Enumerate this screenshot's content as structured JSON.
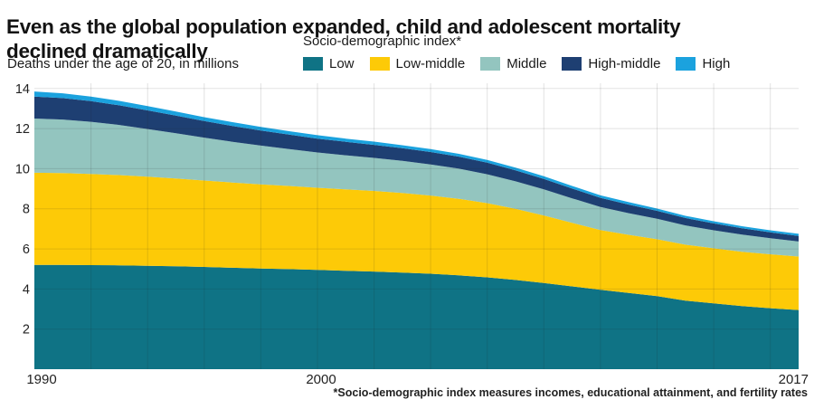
{
  "header": {
    "title_line1": "Even as the global population expanded, child and adolescent mortality",
    "title_line2": "declined dramatically",
    "subtitle": "Deaths under the age of 20, in millions"
  },
  "legend": {
    "title": "Socio-demographic index*"
  },
  "footnote": "*Socio-demographic index measures incomes, educational attainment, and fertility rates",
  "chart_data": {
    "type": "area",
    "stacked": true,
    "title": "Even as the global population expanded, child and adolescent mortality declined dramatically",
    "ylabel": "Deaths under the age of 20, in millions",
    "xlabel": "",
    "ylim": [
      0,
      14
    ],
    "y_ticks": [
      2,
      4,
      6,
      8,
      10,
      12,
      14
    ],
    "x_tick_labels": [
      "1990",
      "2000",
      "2017"
    ],
    "x_tick_years": [
      1990,
      2000,
      2017
    ],
    "grid": true,
    "legend_position": "top",
    "x": [
      1990,
      1991,
      1992,
      1993,
      1994,
      1995,
      1996,
      1997,
      1998,
      1999,
      2000,
      2001,
      2002,
      2003,
      2004,
      2005,
      2006,
      2007,
      2008,
      2009,
      2010,
      2011,
      2012,
      2013,
      2014,
      2015,
      2016,
      2017
    ],
    "series": [
      {
        "name": "Low",
        "color": "#0F7385",
        "values": [
          5.2,
          5.2,
          5.19,
          5.18,
          5.16,
          5.13,
          5.1,
          5.06,
          5.02,
          4.99,
          4.95,
          4.91,
          4.87,
          4.82,
          4.76,
          4.68,
          4.58,
          4.45,
          4.3,
          4.13,
          3.96,
          3.8,
          3.64,
          3.42,
          3.28,
          3.15,
          3.04,
          2.95
        ]
      },
      {
        "name": "Low-middle",
        "color": "#FDCA07",
        "values": [
          4.6,
          4.58,
          4.55,
          4.5,
          4.44,
          4.38,
          4.31,
          4.25,
          4.2,
          4.15,
          4.1,
          4.06,
          4.02,
          3.97,
          3.9,
          3.82,
          3.7,
          3.55,
          3.37,
          3.17,
          2.98,
          2.9,
          2.84,
          2.79,
          2.75,
          2.71,
          2.69,
          2.67
        ]
      },
      {
        "name": "Middle",
        "color": "#93C5BF",
        "values": [
          2.7,
          2.67,
          2.6,
          2.5,
          2.38,
          2.26,
          2.14,
          2.03,
          1.93,
          1.84,
          1.76,
          1.7,
          1.65,
          1.6,
          1.55,
          1.5,
          1.44,
          1.37,
          1.3,
          1.22,
          1.15,
          1.08,
          1.02,
          0.96,
          0.9,
          0.85,
          0.8,
          0.75
        ]
      },
      {
        "name": "High-middle",
        "color": "#1E3F72",
        "values": [
          1.1,
          1.07,
          1.03,
          0.98,
          0.93,
          0.88,
          0.83,
          0.79,
          0.75,
          0.72,
          0.69,
          0.67,
          0.65,
          0.63,
          0.62,
          0.6,
          0.58,
          0.55,
          0.52,
          0.49,
          0.46,
          0.43,
          0.4,
          0.37,
          0.34,
          0.32,
          0.3,
          0.28
        ]
      },
      {
        "name": "High",
        "color": "#1BA2DE",
        "values": [
          0.25,
          0.24,
          0.23,
          0.22,
          0.21,
          0.2,
          0.19,
          0.19,
          0.18,
          0.17,
          0.17,
          0.16,
          0.16,
          0.15,
          0.15,
          0.14,
          0.14,
          0.13,
          0.13,
          0.13,
          0.12,
          0.12,
          0.11,
          0.11,
          0.11,
          0.1,
          0.1,
          0.1
        ]
      }
    ]
  }
}
